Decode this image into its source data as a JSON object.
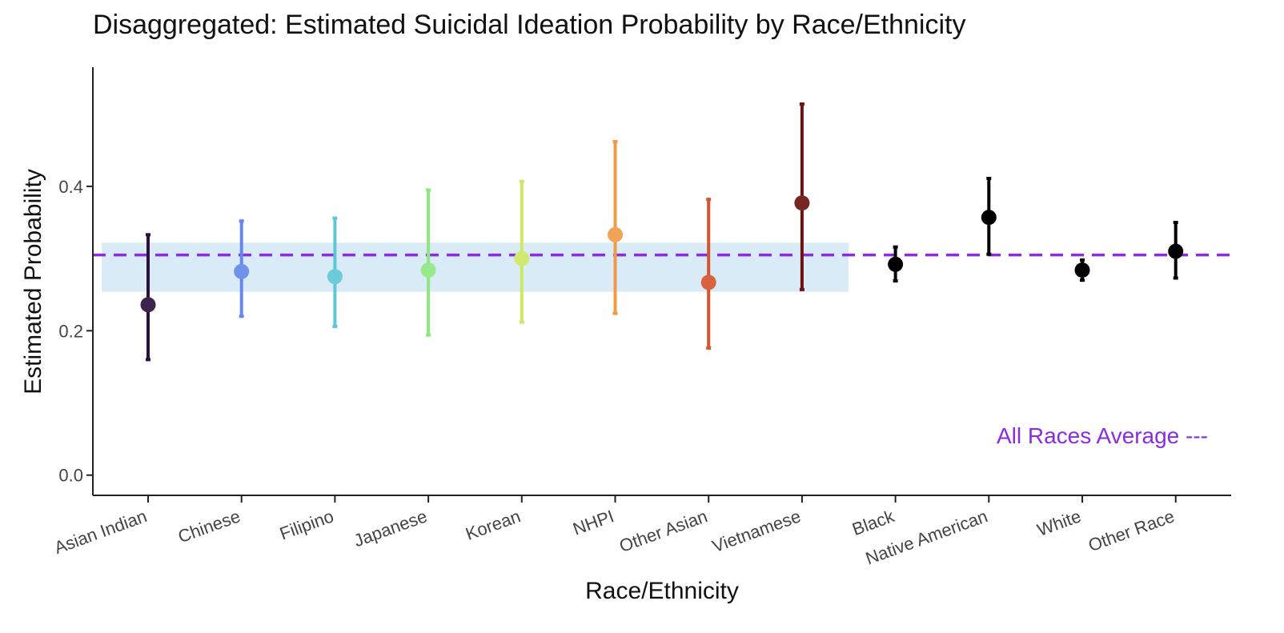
{
  "chart_data": {
    "type": "scatter",
    "title": "Disaggregated: Estimated Suicidal Ideation Probability by Race/Ethnicity",
    "xlabel": "Race/Ethnicity",
    "ylabel": "Estimated Probability",
    "categories": [
      "Asian Indian",
      "Chinese",
      "Filipino",
      "Japanese",
      "Korean",
      "NHPI",
      "Other Asian",
      "Vietnamese",
      "Black",
      "Native American",
      "White",
      "Other Race"
    ],
    "series": [
      {
        "points": [
          {
            "category": "Asian Indian",
            "y": 0.236,
            "lower": 0.16,
            "upper": 0.333,
            "color": "#2b1140"
          },
          {
            "category": "Chinese",
            "y": 0.282,
            "lower": 0.22,
            "upper": 0.352,
            "color": "#6489e8"
          },
          {
            "category": "Filipino",
            "y": 0.275,
            "lower": 0.206,
            "upper": 0.356,
            "color": "#5ec6d6"
          },
          {
            "category": "Japanese",
            "y": 0.284,
            "lower": 0.194,
            "upper": 0.395,
            "color": "#8ee781"
          },
          {
            "category": "Korean",
            "y": 0.3,
            "lower": 0.212,
            "upper": 0.407,
            "color": "#cce865"
          },
          {
            "category": "NHPI",
            "y": 0.333,
            "lower": 0.224,
            "upper": 0.462,
            "color": "#ef9b45"
          },
          {
            "category": "Other Asian",
            "y": 0.267,
            "lower": 0.176,
            "upper": 0.382,
            "color": "#d5552f"
          },
          {
            "category": "Vietnamese",
            "y": 0.377,
            "lower": 0.257,
            "upper": 0.514,
            "color": "#6b1310"
          },
          {
            "category": "Black",
            "y": 0.292,
            "lower": 0.269,
            "upper": 0.316,
            "color": "#000000"
          },
          {
            "category": "Native American",
            "y": 0.357,
            "lower": 0.306,
            "upper": 0.411,
            "color": "#000000"
          },
          {
            "category": "White",
            "y": 0.284,
            "lower": 0.27,
            "upper": 0.298,
            "color": "#000000"
          },
          {
            "category": "Other Race",
            "y": 0.31,
            "lower": 0.273,
            "upper": 0.35,
            "color": "#000000"
          }
        ]
      }
    ],
    "reference_line": {
      "value": 0.305,
      "color": "#8b2be2",
      "style": "dashed",
      "label": "All Races Average ---"
    },
    "shaded_band": {
      "start_category": "Asian Indian",
      "end_category": "Vietnamese",
      "ymin": 0.254,
      "ymax": 0.322,
      "color": "#d9ebf6"
    },
    "yticks": [
      0.0,
      0.2,
      0.4
    ],
    "ytick_labels": [
      "0.0",
      "0.2",
      "0.4"
    ],
    "ylim": [
      -0.028,
      0.565
    ],
    "grid": false,
    "axis_color": "#222222",
    "tick_label_color": "#444444",
    "title_color": "#111111"
  }
}
